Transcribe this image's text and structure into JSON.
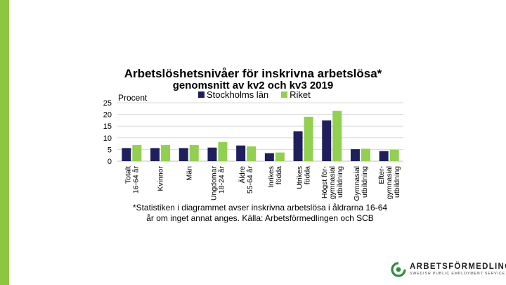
{
  "colors": {
    "accent": "#8dc63f",
    "stockholm": "#1f1f5e",
    "riket": "#92d050",
    "grid": "#d9d9d9"
  },
  "chart_data": {
    "type": "bar",
    "title": "Arbetslöshetsnivåer för inskrivna arbetslösa*",
    "subtitle": "genomsnitt av kv2 och kv3 2019",
    "ylabel": "Procent",
    "ylim": [
      0,
      25
    ],
    "yticks": [
      0,
      5,
      10,
      15,
      20,
      25
    ],
    "grid": true,
    "legend_position": "top",
    "categories": [
      [
        "Totalt",
        "16-64 år"
      ],
      [
        "Kvinnor"
      ],
      [
        "Män"
      ],
      [
        "Ungdomar",
        "18-24 år"
      ],
      [
        "Äldre",
        "55-64 år"
      ],
      [
        "Inrikes",
        "födda"
      ],
      [
        "Utrikes",
        "födda"
      ],
      [
        "Högst för-",
        "gymnasial",
        "utbildning"
      ],
      [
        "Gymnasial",
        "utbildning"
      ],
      [
        "Efter-",
        "gymnasial",
        "utbildning"
      ]
    ],
    "series": [
      {
        "name": "Stockholms län",
        "values": [
          5.6,
          5.6,
          5.6,
          5.8,
          6.7,
          3.4,
          12.8,
          17.4,
          5.1,
          4.3
        ]
      },
      {
        "name": "Riket",
        "values": [
          6.9,
          6.9,
          6.9,
          8.2,
          6.3,
          3.7,
          19.0,
          21.5,
          5.3,
          4.9
        ]
      }
    ]
  },
  "footnote": {
    "line1": "*Statistiken i diagrammet avser inskrivna arbetslösa i åldrarna 16-64",
    "line2": "år om inget annat anges. Källa: Arbetsförmedlingen och SCB"
  },
  "logo": {
    "name": "ARBETSFÖRMEDLINGEN",
    "tagline": "SWEDISH PUBLIC EMPLOYMENT SERVICE"
  }
}
